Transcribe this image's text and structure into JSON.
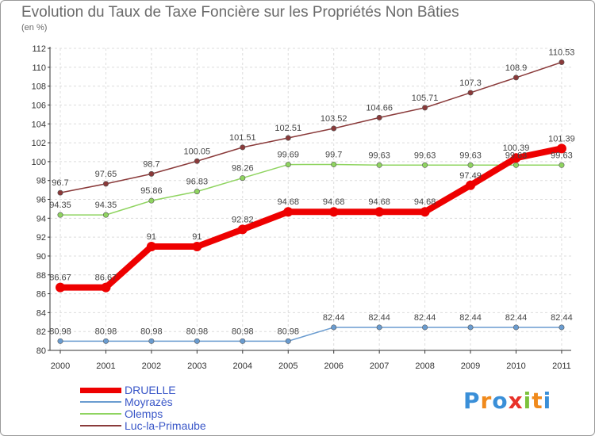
{
  "chart_data": {
    "type": "line",
    "title": "Evolution du Taux de Taxe Foncière sur les Propriétés Non Bâties",
    "subtitle": "(en %)",
    "xlabel": "",
    "ylabel": "",
    "ylim": [
      80,
      112
    ],
    "yticks": [
      80,
      82,
      84,
      86,
      88,
      90,
      92,
      94,
      96,
      98,
      100,
      102,
      104,
      106,
      108,
      110,
      112
    ],
    "categories": [
      "2000",
      "2001",
      "2002",
      "2003",
      "2004",
      "2005",
      "2006",
      "2007",
      "2008",
      "2009",
      "2010",
      "2011"
    ],
    "grid": true,
    "series": [
      {
        "name": "DRUELLE",
        "color": "#ee0000",
        "values": [
          86.67,
          86.67,
          91,
          91,
          92.82,
          94.68,
          94.68,
          94.68,
          94.68,
          97.49,
          100.39,
          101.39
        ],
        "labels": [
          "86.67",
          "86.67",
          "91",
          "91",
          "92.82",
          "94.68",
          "94.68",
          "94.68",
          "94.68",
          "97.49",
          "100.39",
          "101.39"
        ]
      },
      {
        "name": "Moyrazès",
        "color": "#6a9cd0",
        "values": [
          80.98,
          80.98,
          80.98,
          80.98,
          80.98,
          80.98,
          82.44,
          82.44,
          82.44,
          82.44,
          82.44,
          82.44
        ],
        "labels": [
          "80.98",
          "80.98",
          "80.98",
          "80.98",
          "80.98",
          "80.98",
          "82.44",
          "82.44",
          "82.44",
          "82.44",
          "82.44",
          "82.44"
        ]
      },
      {
        "name": "Olemps",
        "color": "#8fd460",
        "values": [
          94.35,
          94.35,
          95.86,
          96.83,
          98.26,
          99.69,
          99.7,
          99.63,
          99.63,
          99.63,
          99.63,
          99.63
        ],
        "labels": [
          "94.35",
          "94.35",
          "95.86",
          "96.83",
          "98.26",
          "99.69",
          "99.7",
          "99.63",
          "99.63",
          "99.63",
          "99.63",
          "99.63"
        ]
      },
      {
        "name": "Luc-la-Primaube",
        "color": "#8a3a3a",
        "values": [
          96.7,
          97.65,
          98.7,
          100.05,
          101.51,
          102.51,
          103.52,
          104.66,
          105.71,
          107.3,
          108.9,
          110.53
        ],
        "labels": [
          "96.7",
          "97.65",
          "98.7",
          "100.05",
          "101.51",
          "102.51",
          "103.52",
          "104.66",
          "105.71",
          "107.3",
          "108.9",
          "110.53"
        ]
      }
    ]
  },
  "legend_items": [
    "DRUELLE",
    "Moyrazès",
    "Olemps",
    "Luc-la-Primaube"
  ],
  "logo": {
    "text": [
      "P",
      "r",
      "o",
      "x",
      "i",
      "t",
      "i"
    ],
    "colors": [
      "#3a8fd8",
      "#f08a1c",
      "#3a8fd8",
      "#e8322a",
      "#7cc23c",
      "#f08a1c",
      "#3a8fd8"
    ]
  }
}
